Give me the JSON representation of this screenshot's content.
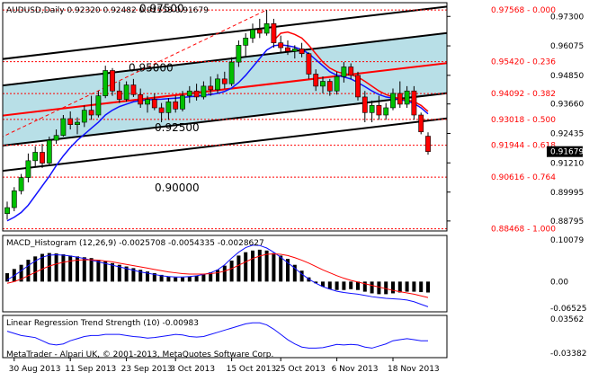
{
  "header": {
    "symbol_line": "AUDUSD,Daily  0.92320 0.92482 0.91553 0.91679"
  },
  "price_panel": {
    "ylabels": [
      "0.97300",
      "0.96075",
      "0.94850",
      "0.93660",
      "0.92435",
      "0.91210",
      "0.89995",
      "0.88795"
    ],
    "current_price": "0.91679",
    "channel_labels": [
      "0.97500",
      "0.95000",
      "0.92500",
      "0.90000"
    ],
    "fib_levels": [
      {
        "label": "0.97568 - 0.000",
        "value": 0.97568
      },
      {
        "label": "0.95420 - 0.236",
        "value": 0.9542
      },
      {
        "label": "0.94092 - 0.382",
        "value": 0.94092
      },
      {
        "label": "0.93018 - 0.500",
        "value": 0.93018
      },
      {
        "label": "0.91944 - 0.618",
        "value": 0.91944
      },
      {
        "label": "0.90616 - 0.764",
        "value": 0.90616
      },
      {
        "label": "0.88468 - 1.000",
        "value": 0.88468
      }
    ]
  },
  "macd_panel": {
    "title": "MACD_Histogram (12,26,9) -0.0025708 -0.0054335 -0.0028627",
    "ylabels": [
      "0.10079",
      "0.00",
      "-0.06525"
    ]
  },
  "lrts_panel": {
    "title": "Linear Regression Trend Strength (10) -0.00983",
    "ylabels": [
      "0.03562",
      "-0.03382"
    ]
  },
  "footer": {
    "copyright": "MetaTrader - Alpari UK, © 2001-2013, MetaQuotes Software Corp."
  },
  "xaxis": {
    "labels": [
      "30 Aug 2013",
      "11 Sep 2013",
      "23 Sep 2013",
      "3 Oct 2013",
      "15 Oct 2013",
      "25 Oct 2013",
      "6 Nov 2013",
      "18 Nov 2013"
    ]
  },
  "colors": {
    "bull": "#00c000",
    "bear": "#ff0000",
    "channel_fill": "#b8dfe7",
    "regression": "#ff0000",
    "ma": "#1010ff",
    "fib": "#ff0000"
  },
  "chart_data": {
    "type": "candlestick",
    "ylim": [
      0.8838,
      0.9787
    ],
    "candles": [
      {
        "o": 0.891,
        "h": 0.896,
        "l": 0.8885,
        "c": 0.8935
      },
      {
        "o": 0.8935,
        "h": 0.902,
        "l": 0.892,
        "c": 0.9005
      },
      {
        "o": 0.9005,
        "h": 0.9075,
        "l": 0.899,
        "c": 0.906
      },
      {
        "o": 0.906,
        "h": 0.916,
        "l": 0.904,
        "c": 0.913
      },
      {
        "o": 0.913,
        "h": 0.919,
        "l": 0.9105,
        "c": 0.9165
      },
      {
        "o": 0.9165,
        "h": 0.92,
        "l": 0.91,
        "c": 0.912
      },
      {
        "o": 0.912,
        "h": 0.923,
        "l": 0.911,
        "c": 0.9215
      },
      {
        "o": 0.9215,
        "h": 0.926,
        "l": 0.92,
        "c": 0.9235
      },
      {
        "o": 0.9235,
        "h": 0.932,
        "l": 0.923,
        "c": 0.9305
      },
      {
        "o": 0.9305,
        "h": 0.9335,
        "l": 0.926,
        "c": 0.928
      },
      {
        "o": 0.928,
        "h": 0.931,
        "l": 0.924,
        "c": 0.929
      },
      {
        "o": 0.929,
        "h": 0.936,
        "l": 0.927,
        "c": 0.934
      },
      {
        "o": 0.934,
        "h": 0.94,
        "l": 0.93,
        "c": 0.932
      },
      {
        "o": 0.932,
        "h": 0.942,
        "l": 0.931,
        "c": 0.94
      },
      {
        "o": 0.94,
        "h": 0.9525,
        "l": 0.939,
        "c": 0.9505
      },
      {
        "o": 0.9505,
        "h": 0.9515,
        "l": 0.94,
        "c": 0.942
      },
      {
        "o": 0.942,
        "h": 0.946,
        "l": 0.937,
        "c": 0.9385
      },
      {
        "o": 0.9385,
        "h": 0.946,
        "l": 0.9375,
        "c": 0.9445
      },
      {
        "o": 0.9445,
        "h": 0.947,
        "l": 0.9395,
        "c": 0.9405
      },
      {
        "o": 0.9405,
        "h": 0.943,
        "l": 0.935,
        "c": 0.9365
      },
      {
        "o": 0.9365,
        "h": 0.94,
        "l": 0.933,
        "c": 0.9385
      },
      {
        "o": 0.9385,
        "h": 0.941,
        "l": 0.934,
        "c": 0.935
      },
      {
        "o": 0.935,
        "h": 0.937,
        "l": 0.929,
        "c": 0.933
      },
      {
        "o": 0.933,
        "h": 0.939,
        "l": 0.93,
        "c": 0.9375
      },
      {
        "o": 0.9375,
        "h": 0.94,
        "l": 0.933,
        "c": 0.9345
      },
      {
        "o": 0.9345,
        "h": 0.942,
        "l": 0.9335,
        "c": 0.94
      },
      {
        "o": 0.94,
        "h": 0.944,
        "l": 0.937,
        "c": 0.942
      },
      {
        "o": 0.942,
        "h": 0.945,
        "l": 0.938,
        "c": 0.9395
      },
      {
        "o": 0.9395,
        "h": 0.946,
        "l": 0.9385,
        "c": 0.944
      },
      {
        "o": 0.944,
        "h": 0.948,
        "l": 0.94,
        "c": 0.9425
      },
      {
        "o": 0.9425,
        "h": 0.949,
        "l": 0.941,
        "c": 0.947
      },
      {
        "o": 0.947,
        "h": 0.95,
        "l": 0.943,
        "c": 0.945
      },
      {
        "o": 0.945,
        "h": 0.956,
        "l": 0.944,
        "c": 0.954
      },
      {
        "o": 0.954,
        "h": 0.963,
        "l": 0.952,
        "c": 0.961
      },
      {
        "o": 0.961,
        "h": 0.966,
        "l": 0.956,
        "c": 0.964
      },
      {
        "o": 0.964,
        "h": 0.97,
        "l": 0.962,
        "c": 0.9675
      },
      {
        "o": 0.9675,
        "h": 0.972,
        "l": 0.964,
        "c": 0.966
      },
      {
        "o": 0.966,
        "h": 0.9757,
        "l": 0.965,
        "c": 0.97
      },
      {
        "o": 0.97,
        "h": 0.972,
        "l": 0.96,
        "c": 0.962
      },
      {
        "o": 0.962,
        "h": 0.965,
        "l": 0.958,
        "c": 0.96
      },
      {
        "o": 0.96,
        "h": 0.963,
        "l": 0.957,
        "c": 0.9585
      },
      {
        "o": 0.9585,
        "h": 0.961,
        "l": 0.9555,
        "c": 0.9595
      },
      {
        "o": 0.9595,
        "h": 0.962,
        "l": 0.956,
        "c": 0.9575
      },
      {
        "o": 0.9575,
        "h": 0.958,
        "l": 0.947,
        "c": 0.949
      },
      {
        "o": 0.949,
        "h": 0.951,
        "l": 0.942,
        "c": 0.944
      },
      {
        "o": 0.944,
        "h": 0.948,
        "l": 0.941,
        "c": 0.946
      },
      {
        "o": 0.946,
        "h": 0.947,
        "l": 0.94,
        "c": 0.942
      },
      {
        "o": 0.942,
        "h": 0.95,
        "l": 0.9405,
        "c": 0.948
      },
      {
        "o": 0.948,
        "h": 0.954,
        "l": 0.9455,
        "c": 0.952
      },
      {
        "o": 0.952,
        "h": 0.9535,
        "l": 0.947,
        "c": 0.9485
      },
      {
        "o": 0.9485,
        "h": 0.95,
        "l": 0.938,
        "c": 0.9395
      },
      {
        "o": 0.9395,
        "h": 0.942,
        "l": 0.929,
        "c": 0.933
      },
      {
        "o": 0.933,
        "h": 0.938,
        "l": 0.929,
        "c": 0.936
      },
      {
        "o": 0.936,
        "h": 0.94,
        "l": 0.93,
        "c": 0.932
      },
      {
        "o": 0.932,
        "h": 0.937,
        "l": 0.93,
        "c": 0.935
      },
      {
        "o": 0.935,
        "h": 0.943,
        "l": 0.934,
        "c": 0.941
      },
      {
        "o": 0.941,
        "h": 0.946,
        "l": 0.935,
        "c": 0.9365
      },
      {
        "o": 0.9365,
        "h": 0.944,
        "l": 0.935,
        "c": 0.942
      },
      {
        "o": 0.942,
        "h": 0.944,
        "l": 0.93,
        "c": 0.932
      },
      {
        "o": 0.932,
        "h": 0.933,
        "l": 0.924,
        "c": 0.925
      },
      {
        "o": 0.9232,
        "h": 0.9248,
        "l": 0.9155,
        "c": 0.9168
      }
    ],
    "ma": [
      0.888,
      0.8895,
      0.8915,
      0.8945,
      0.8985,
      0.9025,
      0.9065,
      0.911,
      0.915,
      0.9185,
      0.9215,
      0.924,
      0.9265,
      0.929,
      0.932,
      0.934,
      0.9355,
      0.9365,
      0.9375,
      0.938,
      0.9383,
      0.9385,
      0.9386,
      0.9388,
      0.939,
      0.9393,
      0.9396,
      0.9398,
      0.9402,
      0.9405,
      0.941,
      0.9418,
      0.9432,
      0.9455,
      0.9485,
      0.952,
      0.9555,
      0.959,
      0.9608,
      0.9612,
      0.9608,
      0.9602,
      0.9592,
      0.9575,
      0.955,
      0.9525,
      0.95,
      0.9485,
      0.9478,
      0.947,
      0.9455,
      0.9438,
      0.942,
      0.9405,
      0.9395,
      0.939,
      0.9385,
      0.9378,
      0.9368,
      0.935,
      0.9325
    ],
    "signal": [
      null,
      null,
      null,
      null,
      null,
      null,
      null,
      null,
      null,
      null,
      null,
      null,
      null,
      null,
      null,
      null,
      null,
      null,
      null,
      null,
      null,
      null,
      null,
      null,
      null,
      null,
      null,
      null,
      null,
      null,
      null,
      null,
      null,
      null,
      null,
      null,
      null,
      null,
      0.963,
      0.966,
      0.9665,
      0.9655,
      0.964,
      0.961,
      0.9575,
      0.954,
      0.9515,
      0.95,
      0.9492,
      0.9488,
      0.9478,
      0.946,
      0.944,
      0.942,
      0.9405,
      0.9395,
      0.9388,
      0.9382,
      0.9376,
      0.936,
      0.9335
    ],
    "regression_channel": {
      "start": [
        0,
        0.932
      ],
      "end": [
        61,
        0.953
      ],
      "offsets": [
        0.0235,
        0.0125,
        -0.0125,
        -0.023
      ]
    },
    "macd_hist": [
      0.02,
      0.03,
      0.04,
      0.052,
      0.06,
      0.066,
      0.068,
      0.067,
      0.065,
      0.062,
      0.06,
      0.058,
      0.056,
      0.052,
      0.048,
      0.044,
      0.04,
      0.036,
      0.032,
      0.028,
      0.024,
      0.02,
      0.016,
      0.012,
      0.01,
      0.01,
      0.012,
      0.014,
      0.018,
      0.022,
      0.028,
      0.038,
      0.05,
      0.062,
      0.07,
      0.074,
      0.076,
      0.074,
      0.068,
      0.062,
      0.054,
      0.04,
      0.026,
      0.01,
      -0.004,
      -0.012,
      -0.018,
      -0.02,
      -0.02,
      -0.018,
      -0.02,
      -0.024,
      -0.028,
      -0.03,
      -0.03,
      -0.028,
      -0.026,
      -0.024,
      -0.024,
      -0.025,
      -0.026
    ],
    "macd_main": [
      0.004,
      0.014,
      0.026,
      0.038,
      0.049,
      0.058,
      0.063,
      0.064,
      0.063,
      0.061,
      0.058,
      0.055,
      0.051,
      0.047,
      0.043,
      0.039,
      0.035,
      0.031,
      0.027,
      0.023,
      0.02,
      0.017,
      0.014,
      0.012,
      0.011,
      0.011,
      0.012,
      0.014,
      0.017,
      0.021,
      0.028,
      0.04,
      0.056,
      0.07,
      0.081,
      0.087,
      0.086,
      0.08,
      0.07,
      0.058,
      0.045,
      0.032,
      0.018,
      0.006,
      -0.004,
      -0.012,
      -0.018,
      -0.023,
      -0.026,
      -0.028,
      -0.03,
      -0.033,
      -0.036,
      -0.038,
      -0.04,
      -0.041,
      -0.042,
      -0.044,
      -0.048,
      -0.054,
      -0.06
    ],
    "macd_signal_line": [
      -0.004,
      0.0,
      0.006,
      0.014,
      0.022,
      0.03,
      0.037,
      0.042,
      0.046,
      0.049,
      0.051,
      0.052,
      0.052,
      0.051,
      0.049,
      0.047,
      0.044,
      0.041,
      0.038,
      0.035,
      0.032,
      0.029,
      0.026,
      0.023,
      0.021,
      0.019,
      0.018,
      0.018,
      0.018,
      0.019,
      0.021,
      0.025,
      0.031,
      0.039,
      0.047,
      0.055,
      0.061,
      0.065,
      0.066,
      0.065,
      0.062,
      0.057,
      0.051,
      0.044,
      0.036,
      0.028,
      0.021,
      0.014,
      0.008,
      0.003,
      -0.001,
      -0.005,
      -0.009,
      -0.013,
      -0.017,
      -0.021,
      -0.024,
      -0.027,
      -0.03,
      -0.034,
      -0.038
    ],
    "macd_ylim": [
      -0.072,
      0.11
    ],
    "lrts": [
      0.01,
      0.006,
      0.002,
      0.0,
      -0.002,
      -0.008,
      -0.014,
      -0.016,
      -0.014,
      -0.008,
      -0.004,
      0.0,
      0.002,
      0.002,
      0.004,
      0.004,
      0.004,
      0.002,
      0.0,
      -0.001,
      -0.003,
      -0.002,
      0.0,
      0.002,
      0.004,
      0.003,
      0.0,
      -0.001,
      0.0,
      0.004,
      0.008,
      0.012,
      0.016,
      0.02,
      0.024,
      0.026,
      0.026,
      0.022,
      0.014,
      0.004,
      -0.006,
      -0.014,
      -0.02,
      -0.022,
      -0.022,
      -0.021,
      -0.018,
      -0.015,
      -0.016,
      -0.015,
      -0.016,
      -0.02,
      -0.022,
      -0.018,
      -0.014,
      -0.008,
      -0.006,
      -0.004,
      -0.006,
      -0.008,
      -0.008
    ],
    "lrts_ylim": [
      -0.04,
      0.04
    ]
  }
}
